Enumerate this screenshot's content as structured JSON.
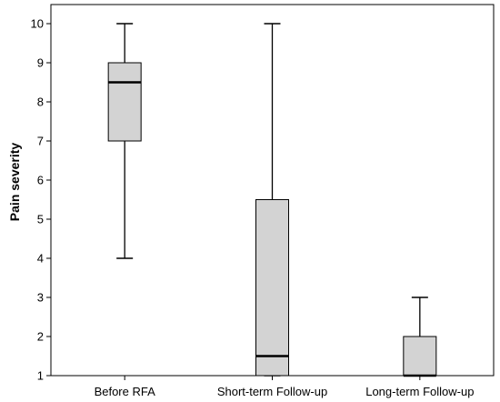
{
  "chart_data": {
    "type": "boxplot",
    "title": "",
    "xlabel": "",
    "ylabel": "Pain severity",
    "ylim": [
      1,
      10
    ],
    "yticks": [
      1,
      2,
      3,
      4,
      5,
      6,
      7,
      8,
      9,
      10
    ],
    "grid": false,
    "categories": [
      "Before RFA",
      "Short-term Follow-up",
      "Long-term Follow-up"
    ],
    "boxes": [
      {
        "min": 4,
        "q1": 7,
        "median": 8.5,
        "q3": 9,
        "max": 10
      },
      {
        "min": 1,
        "q1": 1,
        "median": 1.5,
        "q3": 5.5,
        "max": 10
      },
      {
        "min": 1,
        "q1": 1,
        "median": 1,
        "q3": 2,
        "max": 3
      }
    ],
    "colors": {
      "box_fill": "#d3d3d3",
      "line": "#000000"
    }
  }
}
